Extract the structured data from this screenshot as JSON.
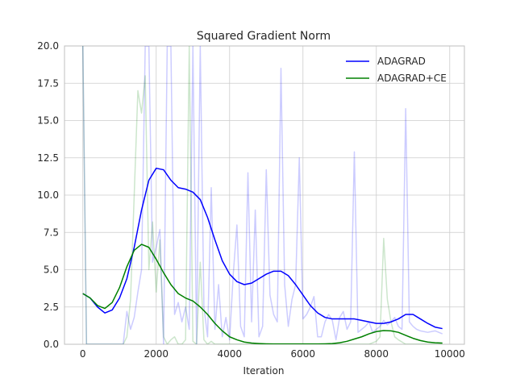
{
  "chart_data": {
    "type": "line",
    "title": "Squared Gradient Norm",
    "xlabel": "Iteration",
    "ylabel": "",
    "xlim": [
      -500,
      10400
    ],
    "ylim": [
      0,
      20
    ],
    "xticks": [
      0,
      2000,
      4000,
      6000,
      8000,
      10000
    ],
    "yticks": [
      0.0,
      2.5,
      5.0,
      7.5,
      10.0,
      12.5,
      15.0,
      17.5,
      20.0
    ],
    "xtick_labels": [
      "0",
      "2000",
      "4000",
      "6000",
      "8000",
      "10000"
    ],
    "ytick_labels": [
      "0.0",
      "2.5",
      "5.0",
      "7.5",
      "10.0",
      "12.5",
      "15.0",
      "17.5",
      "20.0"
    ],
    "grid": true,
    "legend_position": "top-right",
    "series": [
      {
        "name": "ADAGRAD",
        "color": "#0000ff",
        "x": [
          0,
          200,
          400,
          600,
          800,
          1000,
          1200,
          1400,
          1600,
          1800,
          2000,
          2200,
          2400,
          2600,
          2800,
          3000,
          3200,
          3400,
          3600,
          3800,
          4000,
          4200,
          4400,
          4600,
          4800,
          5000,
          5200,
          5400,
          5600,
          5800,
          6000,
          6200,
          6400,
          6600,
          6800,
          7000,
          7200,
          7400,
          7600,
          7800,
          8000,
          8200,
          8400,
          8600,
          8800,
          9000,
          9200,
          9400,
          9600,
          9800
        ],
        "values": [
          3.4,
          3.1,
          2.5,
          2.1,
          2.3,
          3.1,
          4.4,
          6.5,
          9.0,
          11.0,
          11.8,
          11.7,
          11.0,
          10.5,
          10.4,
          10.2,
          9.7,
          8.5,
          7.0,
          5.6,
          4.7,
          4.2,
          4.0,
          4.1,
          4.4,
          4.7,
          4.9,
          4.9,
          4.6,
          4.0,
          3.3,
          2.6,
          2.1,
          1.8,
          1.7,
          1.7,
          1.7,
          1.7,
          1.6,
          1.5,
          1.4,
          1.4,
          1.5,
          1.7,
          2.0,
          2.0,
          1.7,
          1.4,
          1.15,
          1.05
        ]
      },
      {
        "name": "ADAGRAD+CE",
        "color": "#008000",
        "x": [
          0,
          200,
          400,
          600,
          800,
          1000,
          1200,
          1400,
          1600,
          1800,
          2000,
          2200,
          2400,
          2600,
          2800,
          3000,
          3200,
          3400,
          3600,
          3800,
          4000,
          4200,
          4400,
          4600,
          4800,
          5000,
          5200,
          5400,
          5600,
          5800,
          6000,
          6200,
          6400,
          6600,
          6800,
          7000,
          7200,
          7400,
          7600,
          7800,
          8000,
          8200,
          8400,
          8600,
          8800,
          9000,
          9200,
          9400,
          9600,
          9800
        ],
        "values": [
          3.4,
          3.1,
          2.6,
          2.4,
          2.8,
          3.8,
          5.2,
          6.3,
          6.7,
          6.5,
          5.7,
          4.8,
          4.0,
          3.4,
          3.1,
          2.9,
          2.5,
          2.0,
          1.4,
          0.9,
          0.5,
          0.3,
          0.15,
          0.08,
          0.05,
          0.03,
          0.02,
          0.02,
          0.02,
          0.02,
          0.02,
          0.02,
          0.02,
          0.03,
          0.05,
          0.1,
          0.2,
          0.35,
          0.5,
          0.7,
          0.85,
          0.92,
          0.9,
          0.8,
          0.6,
          0.4,
          0.25,
          0.15,
          0.1,
          0.08
        ]
      },
      {
        "color": "#0000ff",
        "opacity": 0.2,
        "x": [
          0,
          100,
          200,
          300,
          400,
          500,
          600,
          700,
          800,
          900,
          1000,
          1100,
          1200,
          1300,
          1400,
          1500,
          1600,
          1700,
          1800,
          1900,
          2000,
          2100,
          2200,
          2300,
          2400,
          2500,
          2600,
          2700,
          2800,
          2900,
          3000,
          3100,
          3200,
          3300,
          3400,
          3500,
          3600,
          3700,
          3800,
          3900,
          4000,
          4100,
          4200,
          4300,
          4400,
          4500,
          4600,
          4700,
          4800,
          4900,
          5000,
          5100,
          5200,
          5300,
          5400,
          5500,
          5600,
          5700,
          5800,
          5900,
          6000,
          6100,
          6200,
          6300,
          6400,
          6500,
          6600,
          6700,
          6800,
          6900,
          7000,
          7100,
          7200,
          7300,
          7400,
          7500,
          7600,
          7700,
          7800,
          7900,
          8000,
          8100,
          8200,
          8300,
          8400,
          8500,
          8600,
          8700,
          8800,
          8900,
          9000,
          9100,
          9200,
          9400,
          9600,
          9800
        ],
        "values": [
          20.0,
          0.0,
          0.0,
          0.0,
          0.0,
          0.0,
          0.0,
          0.0,
          0.0,
          0.0,
          0.0,
          0.0,
          2.2,
          1.0,
          1.8,
          3.5,
          5.0,
          20.0,
          20.0,
          5.5,
          6.5,
          7.7,
          0.0,
          20.0,
          20.0,
          2.0,
          2.8,
          1.5,
          2.5,
          1.0,
          20.0,
          0.0,
          20.0,
          2.5,
          0.5,
          10.5,
          1.0,
          4.0,
          0.5,
          1.8,
          0.3,
          4.7,
          8.0,
          1.2,
          0.5,
          11.5,
          1.5,
          9.0,
          0.5,
          1.2,
          11.7,
          3.3,
          2.0,
          1.5,
          18.5,
          4.0,
          1.2,
          3.0,
          4.0,
          12.5,
          1.7,
          2.0,
          2.5,
          3.2,
          0.5,
          0.5,
          1.5,
          2.0,
          1.6,
          0.3,
          1.8,
          2.2,
          1.0,
          1.5,
          12.9,
          0.8,
          1.0,
          1.2,
          1.5,
          0.8,
          1.0,
          1.2,
          1.6,
          1.3,
          1.5,
          1.8,
          1.2,
          1.0,
          15.8,
          1.5,
          1.2,
          1.0,
          0.9,
          0.8,
          0.9,
          0.7
        ]
      },
      {
        "color": "#008000",
        "opacity": 0.2,
        "x": [
          0,
          100,
          200,
          300,
          400,
          500,
          600,
          700,
          800,
          900,
          1000,
          1100,
          1200,
          1300,
          1400,
          1500,
          1600,
          1700,
          1800,
          1900,
          2000,
          2100,
          2200,
          2300,
          2400,
          2500,
          2600,
          2700,
          2800,
          2900,
          3000,
          3100,
          3200,
          3300,
          3400,
          3500,
          3600,
          3700,
          3800,
          3900,
          4000,
          4200,
          4400,
          4600,
          4800,
          5000,
          5500,
          6000,
          6500,
          7000,
          7500,
          7800,
          8000,
          8100,
          8200,
          8300,
          8400,
          8500,
          8600,
          8800,
          9000,
          9200,
          9400,
          9600,
          9800
        ],
        "values": [
          20.0,
          0.0,
          0.0,
          0.0,
          0.0,
          0.0,
          0.0,
          0.0,
          0.0,
          0.0,
          0.0,
          0.0,
          0.5,
          3.0,
          10.0,
          17.0,
          15.5,
          18.0,
          5.0,
          8.2,
          3.5,
          7.0,
          0.5,
          0.0,
          0.3,
          0.5,
          0.0,
          0.0,
          0.3,
          20.0,
          0.2,
          0.0,
          5.5,
          0.3,
          0.0,
          0.2,
          0.0,
          0.0,
          0.0,
          0.0,
          0.0,
          0.0,
          0.0,
          0.0,
          0.0,
          0.0,
          0.0,
          0.0,
          0.0,
          0.0,
          0.0,
          0.0,
          0.2,
          0.5,
          7.1,
          3.0,
          1.5,
          0.5,
          0.3,
          0.0,
          0.0,
          0.0,
          0.0,
          0.0,
          0.0
        ]
      }
    ]
  }
}
